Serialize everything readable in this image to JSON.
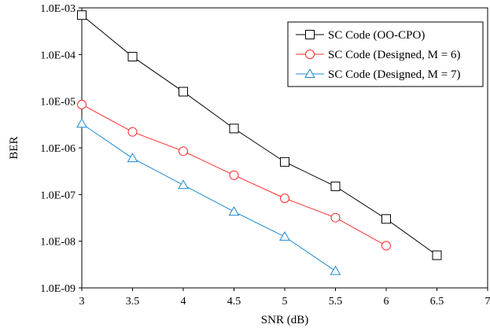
{
  "chart_data": {
    "type": "line",
    "title": "",
    "xlabel": "SNR (dB)",
    "ylabel": "BER",
    "xlim": [
      3,
      7
    ],
    "ylim": [
      1e-09,
      0.001
    ],
    "y_scale": "log",
    "grid": false,
    "legend_position": "top-right",
    "x_ticks": [
      "3",
      "3.5",
      "4",
      "4.5",
      "5",
      "5.5",
      "6",
      "6.5",
      "7"
    ],
    "y_ticks": [
      "1.0E-03",
      "1.0E-04",
      "1.0E-05",
      "1.0E-06",
      "1.0E-07",
      "1.0E-08",
      "1.0E-09"
    ],
    "series": [
      {
        "name": "SC Code (OO-CPO)",
        "marker": "square",
        "color": "#000000",
        "x": [
          3,
          3.5,
          4,
          4.5,
          5,
          5.5,
          6,
          6.5
        ],
        "y": [
          0.0007,
          9e-05,
          1.6e-05,
          2.6e-06,
          5e-07,
          1.5e-07,
          3e-08,
          5e-09
        ]
      },
      {
        "name": "SC Code (Designed, M = 6)",
        "marker": "circle",
        "color": "#ff2a2a",
        "x": [
          3,
          3.5,
          4,
          4.5,
          5,
          5.5,
          6
        ],
        "y": [
          8.5e-06,
          2.2e-06,
          8.5e-07,
          2.6e-07,
          8.3e-08,
          3.2e-08,
          8e-09
        ]
      },
      {
        "name": "SC Code (Designed, M = 7)",
        "marker": "triangle",
        "color": "#1f8ad0",
        "x": [
          3,
          3.5,
          4,
          4.5,
          5,
          5.5
        ],
        "y": [
          3.3e-06,
          6e-07,
          1.6e-07,
          4.3e-08,
          1.25e-08,
          2.3e-09
        ]
      }
    ]
  }
}
